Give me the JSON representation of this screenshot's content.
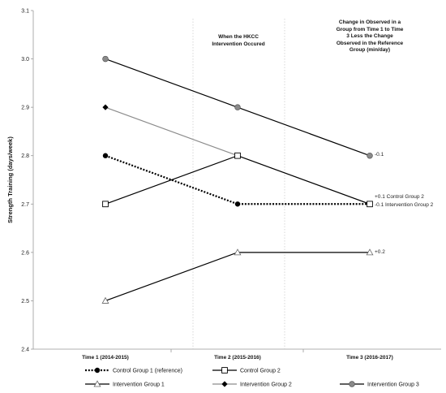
{
  "chart_data": {
    "type": "line",
    "ylabel": "Strength Training (days/week)",
    "ylim": [
      2.4,
      3.1
    ],
    "yticks": [
      "2.4",
      "2.5",
      "2.6",
      "2.7",
      "2.8",
      "2.9",
      "3.0",
      "3.1"
    ],
    "categories": [
      "Time 1 (2014-2015)",
      "Time 2 (2015-2016)",
      "Time 3 (2016-2017)"
    ],
    "grid": false,
    "legend_position": "bottom",
    "annotations": {
      "intervention": "When the HKCC Intervention Occured",
      "change_header": "Change in Observed in a Group from Time 1 to Time 3 Less the Change Observed in the Reference Group (min/day)"
    },
    "series": [
      {
        "name": "Control Group 1 (reference)",
        "values": [
          2.8,
          2.7,
          2.7
        ],
        "color": "#000000",
        "dash": "dotted",
        "marker": "filled-circle"
      },
      {
        "name": "Control Group 2",
        "values": [
          2.7,
          2.8,
          2.7
        ],
        "color": "#000000",
        "dash": "solid",
        "marker": "open-square",
        "end_label": "+0.1 Control Group 2"
      },
      {
        "name": "Intervention Group 1",
        "values": [
          2.5,
          2.6,
          2.6
        ],
        "color": "#000000",
        "dash": "solid",
        "marker": "open-triangle",
        "end_label": "+0.2"
      },
      {
        "name": "Intervention Group 2",
        "values": [
          2.9,
          2.8,
          2.7
        ],
        "color": "#8c8c8c",
        "dash": "solid",
        "marker": "filled-diamond",
        "end_label": "-0.1 Intervention Group 2"
      },
      {
        "name": "Intervention Group 3",
        "values": [
          3.0,
          2.9,
          2.8
        ],
        "color": "#000000",
        "dash": "solid",
        "marker": "gray-circle",
        "end_label": "-0.1"
      }
    ]
  }
}
